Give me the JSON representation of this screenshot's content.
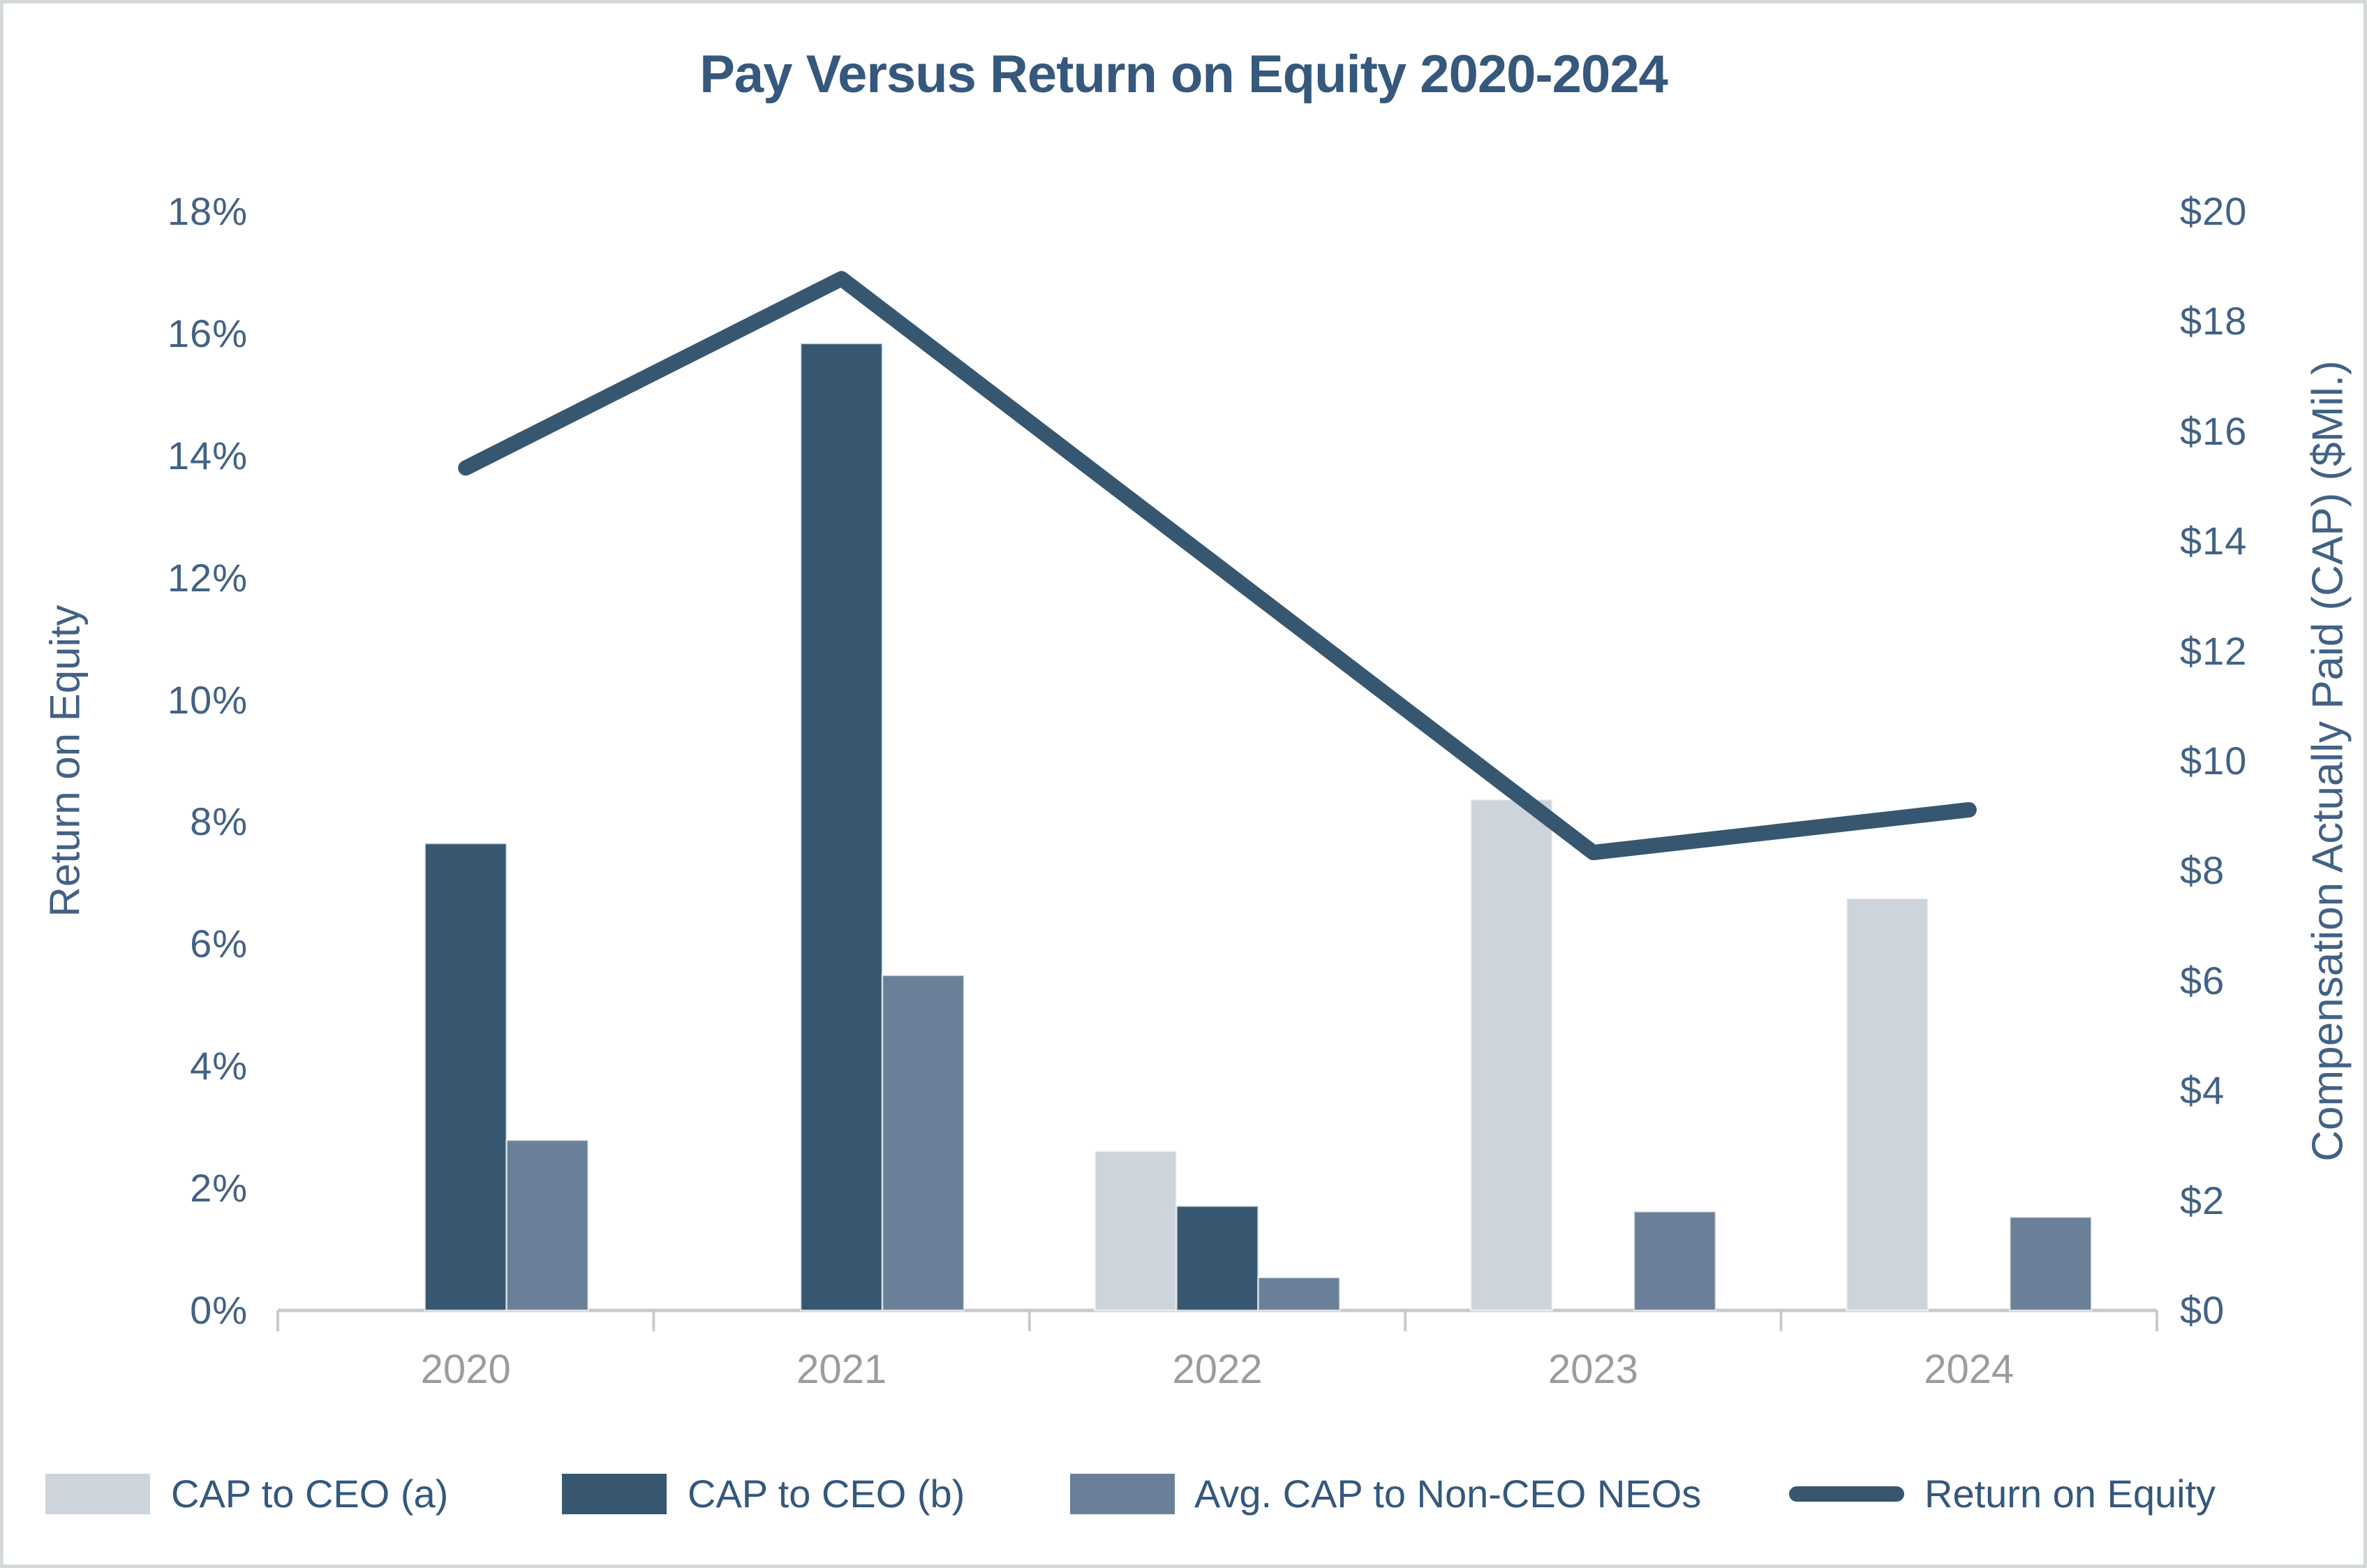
{
  "title": "Pay Versus Return on Equity 2020-2024",
  "legend": {
    "items": [
      {
        "label": "CAP to CEO (a)",
        "color": "#ced4db",
        "type": "swatch"
      },
      {
        "label": "CAP to CEO (b)",
        "color": "#375771",
        "type": "swatch"
      },
      {
        "label": "Avg. CAP to Non-CEO NEOs",
        "color": "#6a8099",
        "type": "swatch"
      },
      {
        "label": "Return on Equity",
        "color": "#375771",
        "type": "line"
      }
    ]
  },
  "chart_data": {
    "type": "combo-bar-line",
    "title": "Pay Versus Return on Equity 2020-2024",
    "categories": [
      "2020",
      "2021",
      "2022",
      "2023",
      "2024"
    ],
    "bar_series": [
      {
        "name": "CAP to CEO (a)",
        "color": "#ced4db",
        "axis": "right",
        "values": [
          null,
          null,
          2.9,
          9.3,
          7.5
        ]
      },
      {
        "name": "CAP to CEO (b)",
        "color": "#375771",
        "axis": "right",
        "values": [
          8.5,
          17.6,
          1.9,
          null,
          null
        ]
      },
      {
        "name": "Avg. CAP to Non-CEO NEOs",
        "color": "#6a8099",
        "axis": "right",
        "values": [
          3.1,
          6.1,
          0.6,
          1.8,
          1.7
        ]
      }
    ],
    "line_series": {
      "name": "Return on Equity",
      "color": "#375771",
      "axis": "left",
      "values_pct": [
        13.8,
        16.9,
        12.2,
        7.5,
        8.2
      ]
    },
    "left_axis": {
      "label": "Return on Equity",
      "min": 0,
      "max": 18,
      "step": 2,
      "ticks": [
        "0%",
        "2%",
        "4%",
        "6%",
        "8%",
        "10%",
        "12%",
        "14%",
        "16%",
        "18%"
      ]
    },
    "right_axis": {
      "label": "Compensation Actually Paid (CAP) ($Mil.)",
      "min": 0,
      "max": 20,
      "step": 2,
      "ticks": [
        "$0",
        "$2",
        "$4",
        "$6",
        "$8",
        "$10",
        "$12",
        "$14",
        "$16",
        "$18",
        "$20"
      ]
    },
    "grid": false,
    "legend_position": "bottom",
    "colors": {
      "title_text": "#35587c",
      "tick_text": "#426285",
      "year_text": "#9a9da0",
      "axis_line": "#c7cbce"
    }
  }
}
